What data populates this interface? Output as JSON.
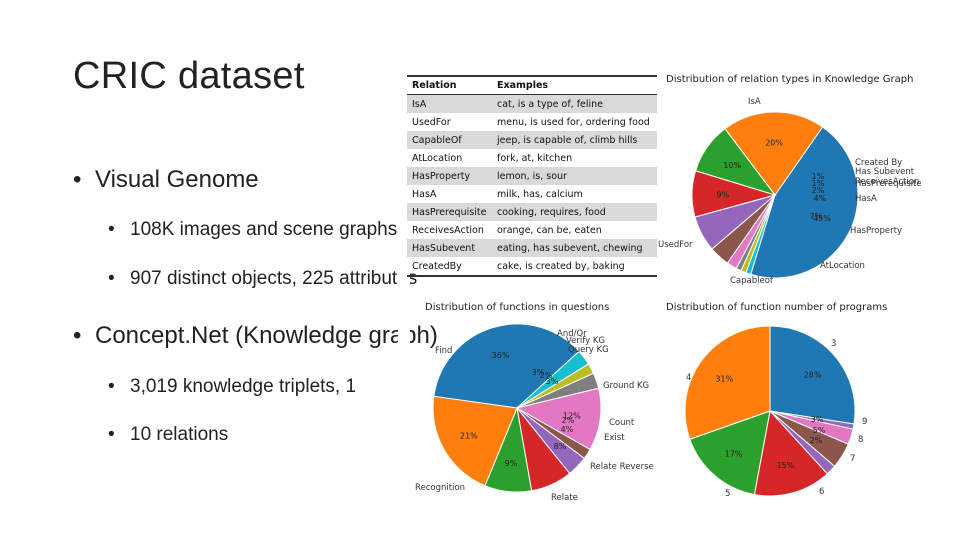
{
  "slide": {
    "title": "CRIC dataset",
    "bullets": [
      {
        "level": 1,
        "text": "Visual Genome"
      },
      {
        "level": 2,
        "text": "108K images and scene graphs"
      },
      {
        "level": 2,
        "text": "907 distinct objects, 225 attributes"
      },
      {
        "level": 1,
        "text": "Concept.Net (Knowledge graph)"
      },
      {
        "level": 2,
        "text": "3,019 knowledge triplets, 1"
      },
      {
        "level": 2,
        "text": "10 relations"
      }
    ]
  },
  "relation_table": {
    "headers": [
      "Relation",
      "Examples"
    ],
    "rows": [
      [
        "IsA",
        "cat, is a type of, feline"
      ],
      [
        "UsedFor",
        "menu, is used for, ordering food"
      ],
      [
        "CapableOf",
        "jeep, is capable of, climb hills"
      ],
      [
        "AtLocation",
        "fork, at, kitchen"
      ],
      [
        "HasProperty",
        "lemon, is, sour"
      ],
      [
        "HasA",
        "milk, has, calcium"
      ],
      [
        "HasPrerequisite",
        "cooking, requires, food"
      ],
      [
        "ReceivesAction",
        "orange, can be, eaten"
      ],
      [
        "HasSubevent",
        "eating, has subevent, chewing"
      ],
      [
        "CreatedBy",
        "cake, is created by, baking"
      ]
    ]
  },
  "chart_data": [
    {
      "type": "pie",
      "title": "Distribution of relation types in Knowledge Graph",
      "slices": [
        {
          "label": "IsA",
          "value": 45,
          "pct_label": "45%",
          "color": "#1f77b4"
        },
        {
          "label": "Created By",
          "value": 1,
          "pct_label": "1%",
          "color": "#17becf"
        },
        {
          "label": "Has Subevent",
          "value": 1,
          "pct_label": "1%",
          "color": "#bcbd22"
        },
        {
          "label": "ReceivesAction",
          "value": 1,
          "pct_label": "",
          "color": "#7f7f7f"
        },
        {
          "label": "HasPrerequisite",
          "value": 2,
          "pct_label": "2%",
          "color": "#e377c2"
        },
        {
          "label": "HasA",
          "value": 4,
          "pct_label": "4%",
          "color": "#8c564b"
        },
        {
          "label": "HasProperty",
          "value": 7,
          "pct_label": "7%",
          "color": "#9467bd"
        },
        {
          "label": "AtLocation",
          "value": 9,
          "pct_label": "9%",
          "color": "#d62728"
        },
        {
          "label": "Capableof",
          "value": 10,
          "pct_label": "10%",
          "color": "#2ca02c"
        },
        {
          "label": "UsedFor",
          "value": 20,
          "pct_label": "20%",
          "color": "#ff7f0e"
        }
      ]
    },
    {
      "type": "pie",
      "title": "Distribution of functions in questions",
      "slices": [
        {
          "label": "Find",
          "value": 36,
          "pct_label": "36%",
          "color": "#1f77b4"
        },
        {
          "label": "And/Or",
          "value": 3,
          "pct_label": "3%",
          "color": "#17becf"
        },
        {
          "label": "Verify KG",
          "value": 2,
          "pct_label": "2%",
          "color": "#bcbd22"
        },
        {
          "label": "Query KG",
          "value": 3,
          "pct_label": "3%",
          "color": "#7f7f7f"
        },
        {
          "label": "Ground KG",
          "value": 12,
          "pct_label": "12%",
          "color": "#e377c2"
        },
        {
          "label": "Count",
          "value": 2,
          "pct_label": "2%",
          "color": "#8c564b"
        },
        {
          "label": "Exist",
          "value": 4,
          "pct_label": "4%",
          "color": "#9467bd"
        },
        {
          "label": "Relate Reverse",
          "value": 8,
          "pct_label": "8%",
          "color": "#d62728"
        },
        {
          "label": "Relate",
          "value": 9,
          "pct_label": "9%",
          "color": "#2ca02c"
        },
        {
          "label": "Recognition",
          "value": 21,
          "pct_label": "21%",
          "color": "#ff7f0e"
        }
      ]
    },
    {
      "type": "pie",
      "title": "Distribution of function number of programs",
      "slices": [
        {
          "label": "3",
          "value": 28,
          "pct_label": "28%",
          "color": "#1f77b4"
        },
        {
          "label": "9",
          "value": 1,
          "pct_label": "",
          "color": "#9467bd"
        },
        {
          "label": "",
          "value": 3,
          "pct_label": "3%",
          "color": "#e377c2"
        },
        {
          "label": "8",
          "value": 5,
          "pct_label": "5%",
          "color": "#8c564b"
        },
        {
          "label": "7",
          "value": 2,
          "pct_label": "2%",
          "color": "#9467bd"
        },
        {
          "label": "6",
          "value": 15,
          "pct_label": "15%",
          "color": "#d62728"
        },
        {
          "label": "5",
          "value": 17,
          "pct_label": "17%",
          "color": "#2ca02c"
        },
        {
          "label": "4",
          "value": 31,
          "pct_label": "31%",
          "color": "#ff7f0e"
        }
      ]
    }
  ]
}
